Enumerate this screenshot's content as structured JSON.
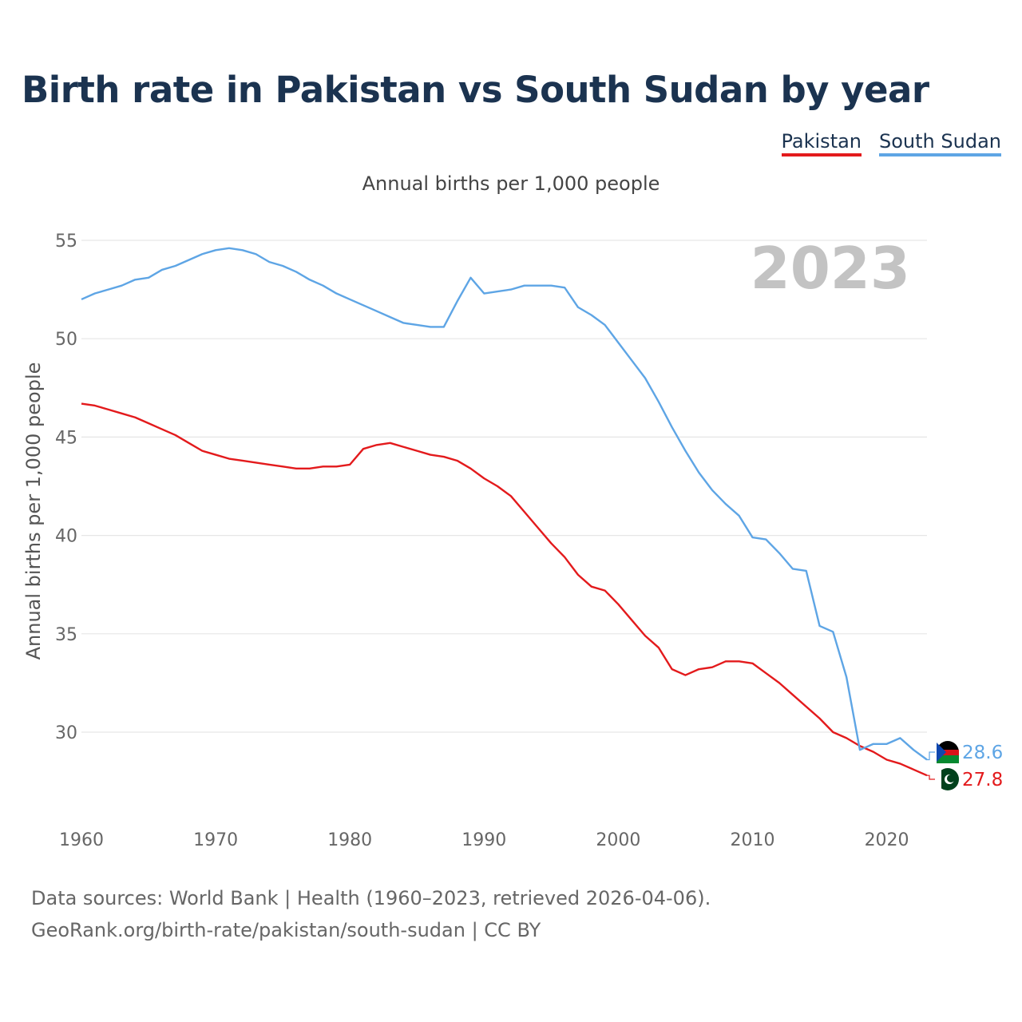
{
  "title": "Birth rate in Pakistan vs South Sudan by year",
  "legend": [
    {
      "name": "Pakistan",
      "color": "#e31a1c"
    },
    {
      "name": "South Sudan",
      "color": "#5ea5e5"
    }
  ],
  "source": {
    "line1": "Data sources: World Bank | Health (1960–2023, retrieved 2026-04-06).",
    "line2": "GeoRank.org/birth-rate/pakistan/south-sudan | CC BY"
  },
  "chart_data": {
    "type": "line",
    "title": "Birth rate in Pakistan vs South Sudan by year",
    "subtitle": "Annual births per 1,000 people",
    "xlabel": "",
    "ylabel": "Annual births per 1,000 people",
    "year_label": "2023",
    "xlim": [
      1960,
      2023
    ],
    "ylim": [
      27,
      56
    ],
    "x_ticks": [
      1960,
      1970,
      1980,
      1990,
      2000,
      2010,
      2020
    ],
    "y_ticks": [
      30,
      35,
      40,
      45,
      50,
      55
    ],
    "grid": true,
    "legend_position": "top-right",
    "x": [
      1960,
      1961,
      1962,
      1963,
      1964,
      1965,
      1966,
      1967,
      1968,
      1969,
      1970,
      1971,
      1972,
      1973,
      1974,
      1975,
      1976,
      1977,
      1978,
      1979,
      1980,
      1981,
      1982,
      1983,
      1984,
      1985,
      1986,
      1987,
      1988,
      1989,
      1990,
      1991,
      1992,
      1993,
      1994,
      1995,
      1996,
      1997,
      1998,
      1999,
      2000,
      2001,
      2002,
      2003,
      2004,
      2005,
      2006,
      2007,
      2008,
      2009,
      2010,
      2011,
      2012,
      2013,
      2014,
      2015,
      2016,
      2017,
      2018,
      2019,
      2020,
      2021,
      2022,
      2023
    ],
    "series": [
      {
        "name": "Pakistan",
        "color": "#e31a1c",
        "end_label": "27.8",
        "values": [
          46.7,
          46.6,
          46.4,
          46.2,
          46.0,
          45.7,
          45.4,
          45.1,
          44.7,
          44.3,
          44.1,
          43.9,
          43.8,
          43.7,
          43.6,
          43.5,
          43.4,
          43.4,
          43.5,
          43.5,
          43.6,
          44.4,
          44.6,
          44.7,
          44.5,
          44.3,
          44.1,
          44.0,
          43.8,
          43.4,
          42.9,
          42.5,
          42.0,
          41.2,
          40.4,
          39.6,
          38.9,
          38.0,
          37.4,
          37.2,
          36.5,
          35.7,
          34.9,
          34.3,
          33.2,
          32.9,
          33.2,
          33.3,
          33.6,
          33.6,
          33.5,
          33.0,
          32.5,
          31.9,
          31.3,
          30.7,
          30.0,
          29.7,
          29.3,
          29.0,
          28.6,
          28.4,
          28.1,
          27.8
        ]
      },
      {
        "name": "South Sudan",
        "color": "#5ea5e5",
        "end_label": "28.6",
        "values": [
          52.0,
          52.3,
          52.5,
          52.7,
          53.0,
          53.1,
          53.5,
          53.7,
          54.0,
          54.3,
          54.5,
          54.6,
          54.5,
          54.3,
          53.9,
          53.7,
          53.4,
          53.0,
          52.7,
          52.3,
          52.0,
          51.7,
          51.4,
          51.1,
          50.8,
          50.7,
          50.6,
          50.6,
          51.9,
          53.1,
          52.3,
          52.4,
          52.5,
          52.7,
          52.7,
          52.7,
          52.6,
          51.6,
          51.2,
          50.7,
          49.8,
          48.9,
          48.0,
          46.8,
          45.5,
          44.3,
          43.2,
          42.3,
          41.6,
          41.0,
          39.9,
          39.8,
          39.1,
          38.3,
          38.2,
          35.4,
          35.1,
          32.8,
          29.1,
          29.4,
          29.4,
          29.7,
          29.1,
          28.6
        ]
      }
    ]
  }
}
